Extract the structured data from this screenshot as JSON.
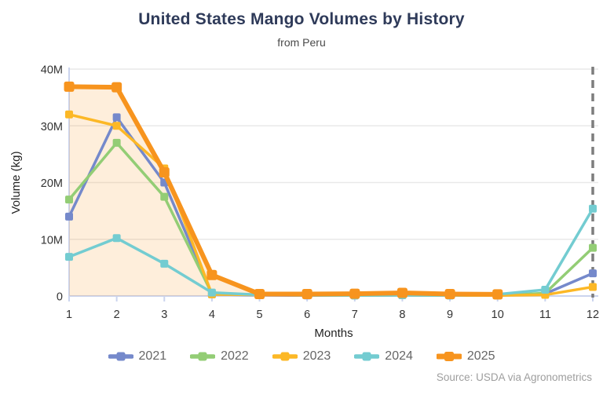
{
  "header": {
    "title": "United States Mango Volumes by History",
    "subtitle": "from Peru"
  },
  "footer": {
    "source": "Source: USDA via Agronometrics"
  },
  "chart_data": {
    "type": "line",
    "title": "United States Mango Volumes by History",
    "subtitle": "from Peru",
    "xlabel": "Months",
    "ylabel": "Volume (kg)",
    "x": [
      1,
      2,
      3,
      4,
      5,
      6,
      7,
      8,
      9,
      10,
      11,
      12
    ],
    "ylim": [
      0,
      40000000
    ],
    "yticks": {
      "values": [
        0,
        10000000,
        20000000,
        30000000,
        40000000
      ],
      "labels": [
        "0",
        "10M",
        "20M",
        "30M",
        "40M"
      ]
    },
    "grid": true,
    "legend_position": "bottom",
    "annotations": {
      "dashed_vline_at_x": 12,
      "dashed_line_color": "#7d7d7d"
    },
    "colors": {
      "gridline": "#e9e9e9",
      "axis_line": "#cbd4ee",
      "tick_text": "#333333",
      "axis_title_text": "#222222"
    },
    "series": [
      {
        "name": "2021",
        "color": "#7589CB",
        "line_width": 3.5,
        "marker": "square",
        "marker_size": 10,
        "area_fill": false,
        "values": [
          14000000,
          31500000,
          20000000,
          300000,
          150000,
          100000,
          100000,
          150000,
          100000,
          100000,
          400000,
          4000000
        ]
      },
      {
        "name": "2022",
        "color": "#93CD75",
        "line_width": 3.5,
        "marker": "square",
        "marker_size": 10,
        "area_fill": false,
        "values": [
          17000000,
          27000000,
          17500000,
          400000,
          200000,
          150000,
          100000,
          150000,
          100000,
          100000,
          500000,
          8500000
        ]
      },
      {
        "name": "2023",
        "color": "#FCB826",
        "line_width": 3.5,
        "marker": "square",
        "marker_size": 10,
        "area_fill": false,
        "values": [
          32000000,
          30000000,
          22500000,
          300000,
          200000,
          150000,
          200000,
          300000,
          150000,
          100000,
          200000,
          1600000
        ]
      },
      {
        "name": "2024",
        "color": "#73CCD1",
        "line_width": 3.5,
        "marker": "square",
        "marker_size": 10,
        "area_fill": false,
        "values": [
          6900000,
          10200000,
          5700000,
          600000,
          200000,
          150000,
          100000,
          150000,
          100000,
          300000,
          1100000,
          15400000
        ]
      },
      {
        "name": "2025",
        "color": "#F7941E",
        "line_width": 6,
        "marker": "square",
        "marker_size": 13,
        "area_fill": true,
        "area_fill_opacity": 0.16,
        "values": [
          36900000,
          36800000,
          21800000,
          3700000,
          350000,
          350000,
          400000,
          550000,
          350000,
          300000,
          null,
          null
        ]
      }
    ]
  }
}
